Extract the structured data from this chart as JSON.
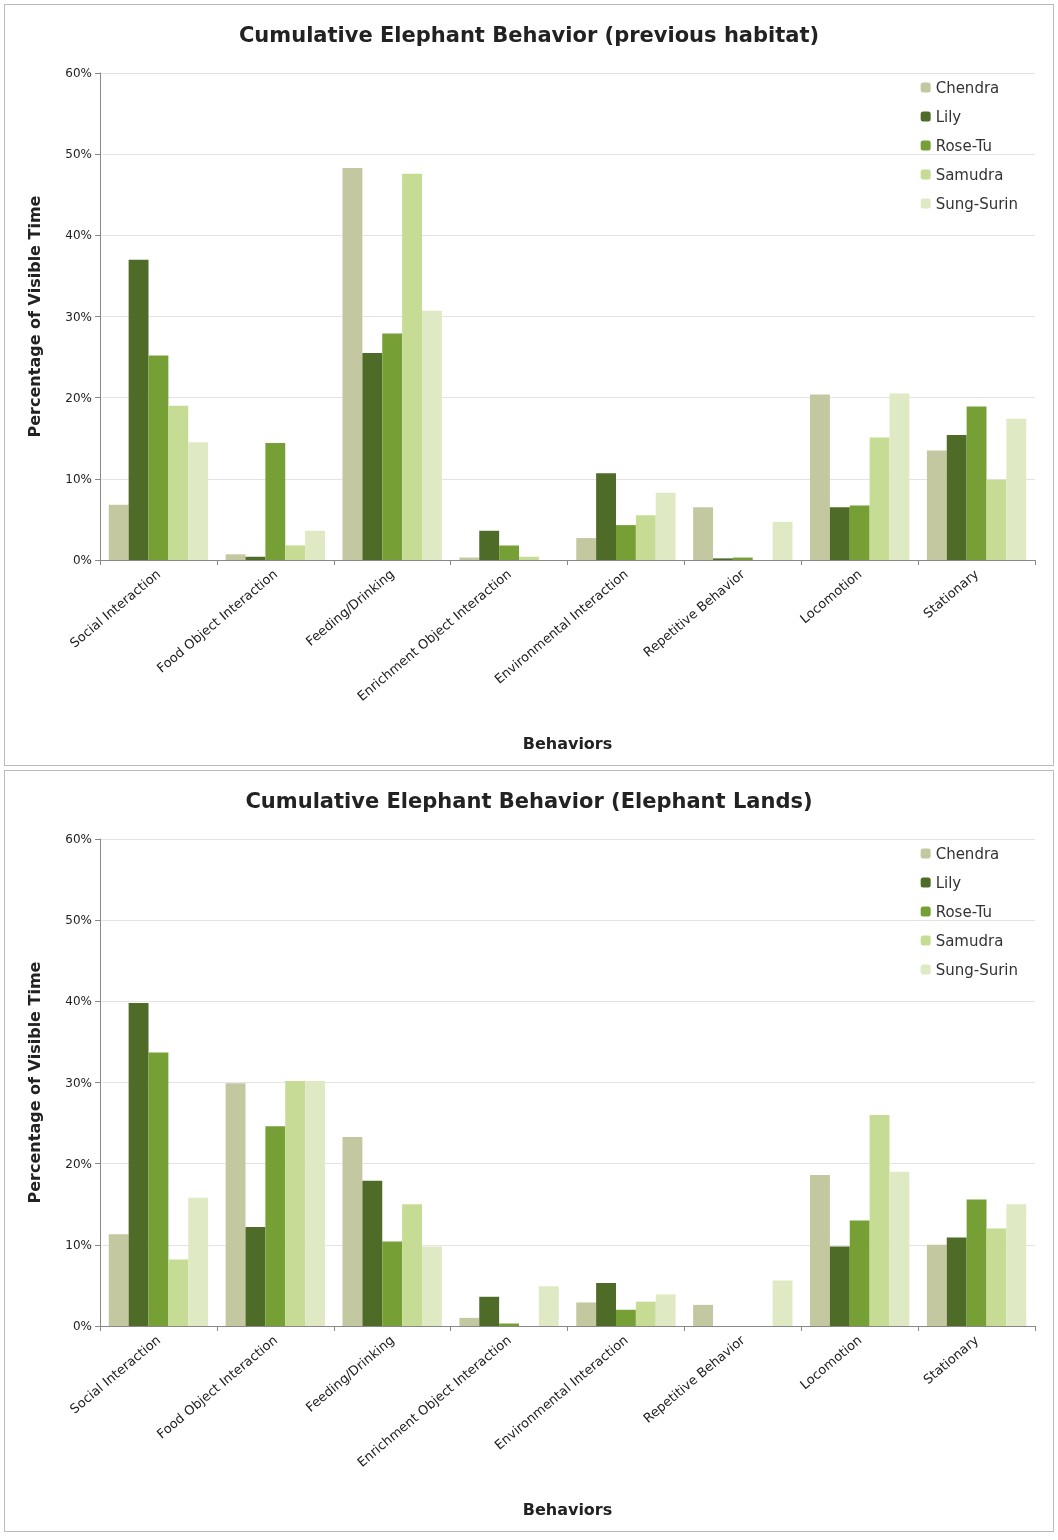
{
  "chart_data": [
    {
      "type": "bar",
      "title": "Cumulative Elephant Behavior (previous habitat)",
      "xlabel": "Behaviors",
      "ylabel": "Percentage of Visible Time",
      "categories": [
        "Social Interaction",
        "Food Object Interaction",
        "Feeding/Drinking",
        "Enrichment Object Interaction",
        "Environmental Interaction",
        "Repetitive Behavior",
        "Locomotion",
        "Stationary"
      ],
      "series": [
        {
          "name": "Chendra",
          "color": "#c4c8a0",
          "values": [
            6.8,
            0.7,
            48.3,
            0.3,
            2.7,
            6.5,
            20.4,
            13.5
          ]
        },
        {
          "name": "Lily",
          "color": "#4f6b28",
          "values": [
            37,
            0.4,
            25.5,
            3.6,
            10.7,
            0.2,
            6.5,
            15.4
          ]
        },
        {
          "name": "Rose-Tu",
          "color": "#76a035",
          "values": [
            25.2,
            14.4,
            27.9,
            1.8,
            4.3,
            0.3,
            6.7,
            18.9
          ]
        },
        {
          "name": "Samudra",
          "color": "#c6dc94",
          "values": [
            19,
            1.8,
            47.6,
            0.4,
            5.5,
            0,
            15.1,
            9.9
          ]
        },
        {
          "name": "Sung-Surin",
          "color": "#dfeac4",
          "values": [
            14.5,
            3.6,
            30.7,
            0,
            8.3,
            4.7,
            20.5,
            17.4
          ]
        }
      ],
      "ylim": [
        0,
        60
      ],
      "yticks": [
        {
          "value": 0,
          "label": "0%"
        },
        {
          "value": 10,
          "label": "10%"
        },
        {
          "value": 20,
          "label": "20%"
        },
        {
          "value": 30,
          "label": "30%"
        },
        {
          "value": 40,
          "label": "40%"
        },
        {
          "value": 50,
          "label": "50%"
        },
        {
          "value": 60,
          "label": "60%"
        }
      ],
      "grid": "y",
      "legend": "top right"
    },
    {
      "type": "bar",
      "title": "Cumulative Elephant Behavior (Elephant Lands)",
      "xlabel": "Behaviors",
      "ylabel": "Percentage of Visible Time",
      "categories": [
        "Social Interaction",
        "Food Object Interaction",
        "Feeding/Drinking",
        "Enrichment Object Interaction",
        "Environmental Interaction",
        "Repetitive Behavior",
        "Locomotion",
        "Stationary"
      ],
      "series": [
        {
          "name": "Chendra",
          "color": "#c4c8a0",
          "values": [
            11.3,
            29.9,
            23.3,
            1.0,
            2.9,
            2.6,
            18.6,
            10.0
          ]
        },
        {
          "name": "Lily",
          "color": "#4f6b28",
          "values": [
            39.8,
            12.2,
            17.9,
            3.6,
            5.3,
            0,
            9.8,
            10.9
          ]
        },
        {
          "name": "Rose-Tu",
          "color": "#76a035",
          "values": [
            33.7,
            24.6,
            10.4,
            0.3,
            2.0,
            0,
            13.0,
            15.6
          ]
        },
        {
          "name": "Samudra",
          "color": "#c6dc94",
          "values": [
            8.2,
            30.2,
            15.0,
            0,
            3.0,
            0,
            26.0,
            12.0
          ]
        },
        {
          "name": "Sung-Surin",
          "color": "#dfeac4",
          "values": [
            15.8,
            30.2,
            9.8,
            4.9,
            3.9,
            5.6,
            19.0,
            15.0
          ]
        }
      ],
      "ylim": [
        0,
        60
      ],
      "yticks": [
        {
          "value": 0,
          "label": "0%"
        },
        {
          "value": 10,
          "label": "10%"
        },
        {
          "value": 20,
          "label": "20%"
        },
        {
          "value": 30,
          "label": "30%"
        },
        {
          "value": 40,
          "label": "40%"
        },
        {
          "value": 50,
          "label": "50%"
        },
        {
          "value": 60,
          "label": "60%"
        }
      ],
      "grid": "y",
      "legend": "top right"
    }
  ]
}
